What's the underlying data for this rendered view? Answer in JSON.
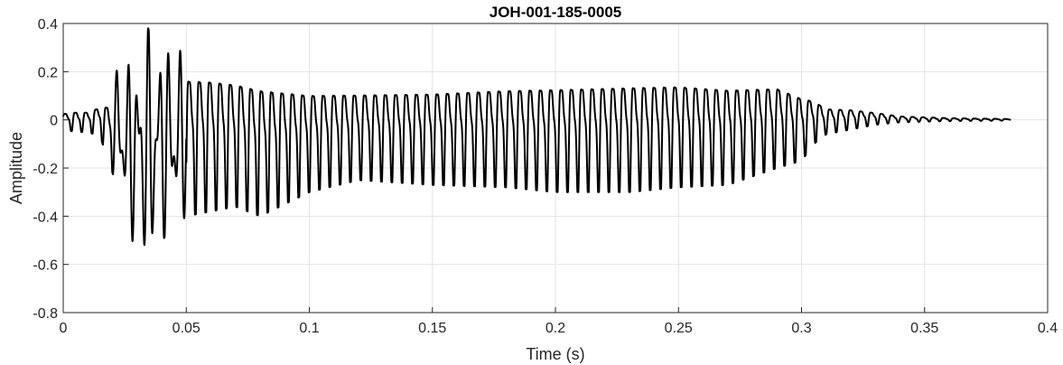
{
  "chart_data": {
    "type": "line",
    "title": "JOH-001-185-0005",
    "xlabel": "Time (s)",
    "ylabel": "Amplitude",
    "xlim": [
      0,
      0.4
    ],
    "ylim": [
      -0.8,
      0.4
    ],
    "grid": true,
    "x_ticks": [
      0,
      0.05,
      0.1,
      0.15,
      0.2,
      0.25,
      0.3,
      0.35,
      0.4
    ],
    "x_tick_labels": [
      "0",
      "0.05",
      "0.1",
      "0.15",
      "0.2",
      "0.25",
      "0.3",
      "0.35",
      "0.4"
    ],
    "y_ticks": [
      -0.8,
      -0.6,
      -0.4,
      -0.2,
      0,
      0.2,
      0.4
    ],
    "y_tick_labels": [
      "-0.8",
      "-0.6",
      "-0.4",
      "-0.2",
      "0",
      "0.2",
      "0.4"
    ],
    "series": [
      {
        "color": "#000000",
        "oscillation_period_s": 0.0042,
        "x": [
          0,
          0.005,
          0.01,
          0.015,
          0.02,
          0.022,
          0.025,
          0.028,
          0.03,
          0.032,
          0.034,
          0.036,
          0.04,
          0.045,
          0.05,
          0.06,
          0.07,
          0.08,
          0.1,
          0.12,
          0.15,
          0.18,
          0.2,
          0.23,
          0.25,
          0.27,
          0.29,
          0.3,
          0.305,
          0.31,
          0.32,
          0.33,
          0.34,
          0.36,
          0.385
        ],
        "upper": [
          0.04,
          0.05,
          0.05,
          0.08,
          0.12,
          0.25,
          0.2,
          0.28,
          0.3,
          0.36,
          0.39,
          0.35,
          0.34,
          0.3,
          0.3,
          0.29,
          0.27,
          0.25,
          0.2,
          0.19,
          0.2,
          0.22,
          0.23,
          0.24,
          0.24,
          0.22,
          0.21,
          0.15,
          0.12,
          0.07,
          0.06,
          0.04,
          0.02,
          0.01,
          0.005
        ],
        "lower": [
          -0.04,
          -0.05,
          -0.05,
          -0.07,
          -0.22,
          -0.28,
          -0.4,
          -0.5,
          -0.55,
          -0.62,
          -0.58,
          -0.6,
          -0.5,
          -0.45,
          -0.4,
          -0.38,
          -0.36,
          -0.4,
          -0.3,
          -0.25,
          -0.27,
          -0.28,
          -0.3,
          -0.3,
          -0.28,
          -0.27,
          -0.2,
          -0.17,
          -0.1,
          -0.06,
          -0.04,
          -0.02,
          -0.01,
          -0.005,
          -0.003
        ]
      }
    ]
  }
}
